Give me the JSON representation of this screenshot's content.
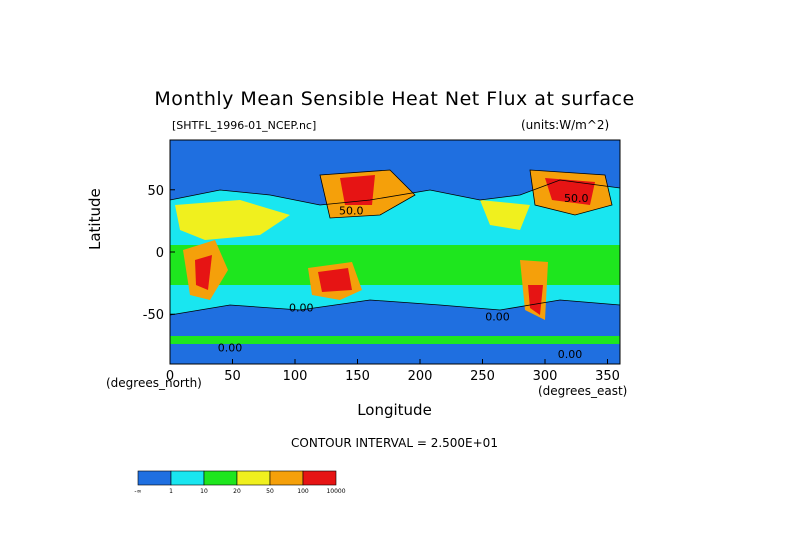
{
  "chart_data": {
    "type": "heatmap",
    "title": "Monthly Mean Sensible Heat Net Flux at surface",
    "source_label": "[SHTFL_1996-01_NCEP.nc]",
    "units_label": "(units:W/m^2)",
    "xlabel": "Longitude",
    "ylabel": "Latitude",
    "x_unit_label": "(degrees_east)",
    "y_unit_label": "(degrees_north)",
    "xlim": [
      0,
      360
    ],
    "ylim": [
      -90,
      90
    ],
    "x_ticks": [
      0,
      50,
      100,
      150,
      200,
      250,
      300,
      350
    ],
    "y_ticks": [
      -50,
      0,
      50
    ],
    "contour_interval": "CONTOUR INTERVAL = 2.500E+01",
    "contour_labels": [
      "50.0",
      "0.00"
    ],
    "colorbar": {
      "bin_colors": [
        "#1f6fe0",
        "#19e6f0",
        "#1ee61e",
        "#f0f01e",
        "#f5a00a",
        "#e61414"
      ],
      "tick_labels": [
        "-∞",
        "1",
        "10",
        "20",
        "50",
        "100",
        "10000"
      ]
    }
  }
}
